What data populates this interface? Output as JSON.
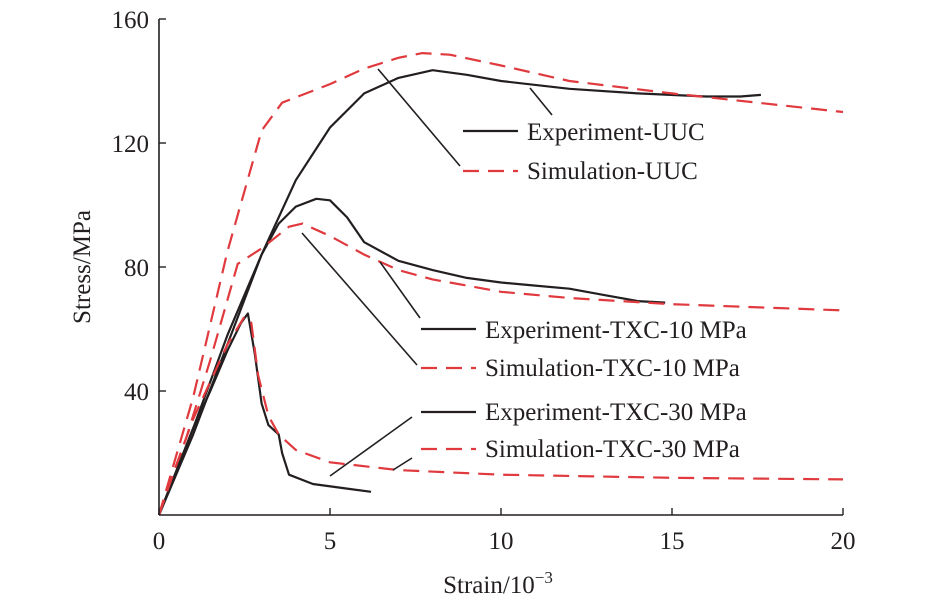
{
  "chart_data": {
    "type": "line",
    "title": "",
    "xlabel": "Strain/10",
    "xlabel_exponent": "−3",
    "ylabel": "Stress/MPa",
    "xlim": [
      0,
      20
    ],
    "ylim": [
      0,
      160
    ],
    "x_ticks": [
      0,
      5,
      10,
      15,
      20
    ],
    "y_ticks": [
      40,
      80,
      120,
      160
    ],
    "grid": false,
    "legend_placement": "inline-annotations",
    "colors": {
      "experiment": "#231f20",
      "simulation": "#e03a3e",
      "axis": "#231f20"
    },
    "series": [
      {
        "name": "Experiment-UUC",
        "style": "solid",
        "color": "#231f20",
        "points": [
          [
            0,
            0
          ],
          [
            1,
            26
          ],
          [
            2,
            55
          ],
          [
            3,
            84
          ],
          [
            4,
            108
          ],
          [
            5,
            125
          ],
          [
            6,
            136
          ],
          [
            7,
            141
          ],
          [
            8,
            143.5
          ],
          [
            9,
            142
          ],
          [
            10,
            140
          ],
          [
            12,
            137.5
          ],
          [
            14,
            136
          ],
          [
            16,
            135
          ],
          [
            17,
            135
          ],
          [
            17.6,
            135.5
          ]
        ]
      },
      {
        "name": "Simulation-UUC",
        "style": "dashed",
        "color": "#e03a3e",
        "points": [
          [
            0,
            0
          ],
          [
            1,
            38
          ],
          [
            2,
            85
          ],
          [
            3,
            124
          ],
          [
            3.6,
            133
          ],
          [
            5,
            139
          ],
          [
            6,
            144
          ],
          [
            7,
            147.5
          ],
          [
            7.7,
            149
          ],
          [
            8.5,
            148.5
          ],
          [
            10,
            145
          ],
          [
            12,
            140
          ],
          [
            15,
            136
          ],
          [
            20,
            130
          ]
        ]
      },
      {
        "name": "Experiment-TXC-10 MPa",
        "style": "solid",
        "color": "#231f20",
        "points": [
          [
            0,
            0
          ],
          [
            1,
            28
          ],
          [
            2,
            58
          ],
          [
            3,
            84
          ],
          [
            3.5,
            94
          ],
          [
            4,
            99.5
          ],
          [
            4.6,
            102
          ],
          [
            5,
            101.5
          ],
          [
            5.5,
            96
          ],
          [
            6,
            88
          ],
          [
            7,
            82
          ],
          [
            8,
            79
          ],
          [
            9,
            76.5
          ],
          [
            10,
            75
          ],
          [
            11,
            74
          ],
          [
            12,
            73
          ],
          [
            13,
            71
          ],
          [
            14,
            69
          ],
          [
            14.8,
            68.5
          ]
        ]
      },
      {
        "name": "Simulation-TXC-10 MPa",
        "style": "dashed",
        "color": "#e03a3e",
        "points": [
          [
            0,
            0
          ],
          [
            0.8,
            25
          ],
          [
            1.5,
            50
          ],
          [
            2.3,
            81
          ],
          [
            3,
            86
          ],
          [
            3.8,
            93
          ],
          [
            4.2,
            94
          ],
          [
            5,
            90
          ],
          [
            6,
            84
          ],
          [
            7,
            79
          ],
          [
            8,
            76
          ],
          [
            10,
            72
          ],
          [
            12,
            70
          ],
          [
            15,
            68
          ],
          [
            20,
            66
          ]
        ]
      },
      {
        "name": "Experiment-TXC-30 MPa",
        "style": "solid",
        "color": "#231f20",
        "points": [
          [
            0,
            0
          ],
          [
            0.5,
            14
          ],
          [
            1,
            28
          ],
          [
            1.5,
            40
          ],
          [
            2,
            53
          ],
          [
            2.4,
            62
          ],
          [
            2.6,
            65
          ],
          [
            2.8,
            52
          ],
          [
            3,
            36
          ],
          [
            3.2,
            29
          ],
          [
            3.5,
            26
          ],
          [
            3.6,
            20
          ],
          [
            3.8,
            13
          ],
          [
            4.5,
            10
          ],
          [
            5.5,
            8.5
          ],
          [
            6.2,
            7.5
          ]
        ]
      },
      {
        "name": "Simulation-TXC-30 MPa",
        "style": "dashed",
        "color": "#e03a3e",
        "points": [
          [
            0,
            0
          ],
          [
            0.5,
            16
          ],
          [
            1,
            31
          ],
          [
            1.5,
            43
          ],
          [
            2,
            55
          ],
          [
            2.5,
            64
          ],
          [
            2.7,
            62
          ],
          [
            2.9,
            45
          ],
          [
            3.2,
            32
          ],
          [
            3.5,
            26
          ],
          [
            4,
            21
          ],
          [
            5,
            17
          ],
          [
            7,
            14.5
          ],
          [
            10,
            13
          ],
          [
            15,
            12
          ],
          [
            20,
            11.5
          ]
        ]
      }
    ]
  }
}
